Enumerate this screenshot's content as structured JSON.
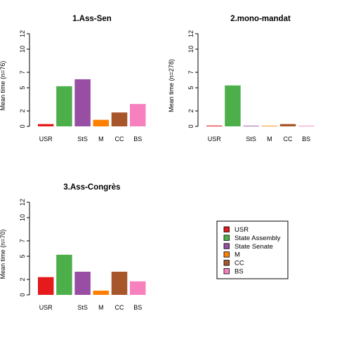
{
  "chart_data": [
    {
      "type": "bar",
      "title": "1.Ass-Sen",
      "ylabel": "Mean time (n=76)",
      "xlabel": "",
      "ylim": [
        0,
        12
      ],
      "yticks": [
        0,
        2,
        5,
        7,
        10,
        12
      ],
      "categories": [
        "USR",
        "State Assembly",
        "State Senate",
        "M",
        "CC",
        "BS"
      ],
      "tick_labels": [
        "USR",
        "",
        "StS",
        "M",
        "CC",
        "BS"
      ],
      "values": [
        0.3,
        5.2,
        6.1,
        0.85,
        1.8,
        2.9
      ]
    },
    {
      "type": "bar",
      "title": "2.mono-mandat",
      "ylabel": "Mean time (n=278)",
      "xlabel": "",
      "ylim": [
        0,
        12
      ],
      "yticks": [
        0,
        2,
        5,
        7,
        10,
        12
      ],
      "categories": [
        "USR",
        "State Assembly",
        "State Senate",
        "M",
        "CC",
        "BS"
      ],
      "tick_labels": [
        "USR",
        "",
        "StS",
        "M",
        "CC",
        "BS"
      ],
      "values": [
        0.1,
        5.3,
        0.08,
        0.08,
        0.3,
        0.08
      ]
    },
    {
      "type": "bar",
      "title": "3.Ass-Congrès",
      "ylabel": "Mean time (n=70)",
      "xlabel": "",
      "ylim": [
        0,
        12
      ],
      "yticks": [
        0,
        2,
        5,
        7,
        10,
        12
      ],
      "categories": [
        "USR",
        "State Assembly",
        "State Senate",
        "M",
        "CC",
        "BS"
      ],
      "tick_labels": [
        "USR",
        "",
        "StS",
        "M",
        "CC",
        "BS"
      ],
      "values": [
        2.3,
        5.2,
        3.0,
        0.55,
        3.0,
        1.75
      ]
    }
  ],
  "legend": {
    "placement": "bottom-right",
    "entries": [
      {
        "label": "USR",
        "color": "#E41A1C"
      },
      {
        "label": "State Assembly",
        "color": "#4DAF4A"
      },
      {
        "label": "State Senate",
        "color": "#984EA3"
      },
      {
        "label": "M",
        "color": "#FF7F00"
      },
      {
        "label": "CC",
        "color": "#A65628"
      },
      {
        "label": "BS",
        "color": "#F781BF"
      }
    ]
  }
}
